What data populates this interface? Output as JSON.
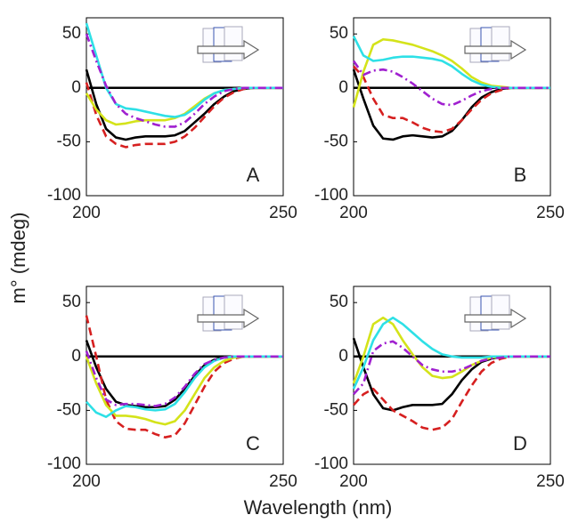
{
  "ylabel": "m° (mdeg)",
  "xlabel": "Wavelength (nm)",
  "chart_data": [
    {
      "type": "line",
      "label": "A",
      "x": [
        200,
        202.5,
        205,
        207.5,
        210,
        212.5,
        215,
        217.5,
        220,
        222.5,
        225,
        227.5,
        230,
        232.5,
        235,
        237.5,
        240,
        242.5,
        245,
        247.5,
        250
      ],
      "xlim": [
        200,
        250
      ],
      "xticks": [
        200,
        250
      ],
      "ylim": [
        -100,
        65
      ],
      "yticks": [
        -100,
        -50,
        0,
        50
      ],
      "hlines": [
        0
      ],
      "series": [
        {
          "color": "#000000",
          "dash": "solid",
          "values": [
            17,
            -15,
            -38,
            -46,
            -48,
            -46,
            -45,
            -45,
            -45,
            -44,
            -40,
            -32,
            -24,
            -15,
            -8,
            -3,
            -1,
            0,
            0,
            0,
            0
          ]
        },
        {
          "color": "#d62020",
          "dash": "dashed",
          "values": [
            5,
            -25,
            -45,
            -52,
            -55,
            -53,
            -52,
            -52,
            -52,
            -50,
            -45,
            -37,
            -27,
            -17,
            -9,
            -4,
            -1,
            0,
            0,
            0,
            0
          ]
        },
        {
          "color": "#d4e31a",
          "dash": "solid",
          "values": [
            -5,
            -20,
            -30,
            -34,
            -33,
            -31,
            -30,
            -30,
            -30,
            -28,
            -24,
            -17,
            -10,
            -5,
            -2,
            -1,
            0,
            0,
            0,
            0,
            0
          ]
        },
        {
          "color": "#2ee0e6",
          "dash": "solid",
          "values": [
            60,
            30,
            0,
            -15,
            -19,
            -20,
            -22,
            -24,
            -26,
            -27,
            -25,
            -19,
            -11,
            -5,
            -2,
            -1,
            0,
            0,
            0,
            0,
            0
          ]
        },
        {
          "color": "#a020d0",
          "dash": "dashdot",
          "values": [
            50,
            25,
            2,
            -15,
            -24,
            -28,
            -31,
            -34,
            -36,
            -36,
            -32,
            -24,
            -15,
            -8,
            -3,
            -1,
            0,
            0,
            0,
            0,
            0
          ]
        }
      ]
    },
    {
      "type": "line",
      "label": "B",
      "x": [
        200,
        202.5,
        205,
        207.5,
        210,
        212.5,
        215,
        217.5,
        220,
        222.5,
        225,
        227.5,
        230,
        232.5,
        235,
        237.5,
        240,
        242.5,
        245,
        247.5,
        250
      ],
      "xlim": [
        200,
        250
      ],
      "xticks": [
        200,
        250
      ],
      "ylim": [
        -100,
        65
      ],
      "yticks": [
        -100,
        -50,
        0,
        50
      ],
      "hlines": [
        0
      ],
      "series": [
        {
          "color": "#000000",
          "dash": "solid",
          "values": [
            17,
            -10,
            -35,
            -47,
            -48,
            -45,
            -44,
            -45,
            -46,
            -45,
            -40,
            -30,
            -18,
            -9,
            -4,
            -1,
            0,
            0,
            0,
            0,
            0
          ]
        },
        {
          "color": "#d62020",
          "dash": "dashed",
          "values": [
            20,
            10,
            -10,
            -25,
            -28,
            -28,
            -32,
            -37,
            -40,
            -41,
            -38,
            -30,
            -20,
            -11,
            -5,
            -2,
            0,
            0,
            0,
            0,
            0
          ]
        },
        {
          "color": "#d4e31a",
          "dash": "solid",
          "values": [
            -18,
            15,
            40,
            45,
            44,
            42,
            40,
            37,
            34,
            30,
            25,
            18,
            10,
            5,
            2,
            1,
            0,
            0,
            0,
            0,
            0
          ]
        },
        {
          "color": "#2ee0e6",
          "dash": "solid",
          "values": [
            48,
            30,
            25,
            26,
            28,
            29,
            29,
            28,
            27,
            25,
            20,
            13,
            7,
            3,
            1,
            0,
            0,
            0,
            0,
            0,
            0
          ]
        },
        {
          "color": "#a020d0",
          "dash": "dashdot",
          "values": [
            25,
            12,
            16,
            17,
            15,
            10,
            4,
            -3,
            -10,
            -15,
            -16,
            -12,
            -7,
            -3,
            -1,
            0,
            0,
            0,
            0,
            0,
            0
          ]
        }
      ]
    },
    {
      "type": "line",
      "label": "C",
      "x": [
        200,
        202.5,
        205,
        207.5,
        210,
        212.5,
        215,
        217.5,
        220,
        222.5,
        225,
        227.5,
        230,
        232.5,
        235,
        237.5,
        240,
        242.5,
        245,
        247.5,
        250
      ],
      "xlim": [
        200,
        250
      ],
      "xticks": [
        200,
        250
      ],
      "ylim": [
        -100,
        65
      ],
      "yticks": [
        -100,
        -50,
        0,
        50
      ],
      "hlines": [
        0
      ],
      "series": [
        {
          "color": "#000000",
          "dash": "solid",
          "values": [
            15,
            -10,
            -30,
            -42,
            -45,
            -46,
            -47,
            -47,
            -46,
            -40,
            -30,
            -18,
            -8,
            -3,
            -1,
            0,
            0,
            0,
            0,
            0,
            0
          ]
        },
        {
          "color": "#d62020",
          "dash": "dashed",
          "values": [
            38,
            0,
            -40,
            -60,
            -67,
            -68,
            -68,
            -72,
            -75,
            -73,
            -62,
            -45,
            -28,
            -14,
            -6,
            -2,
            0,
            0,
            0,
            0,
            0
          ]
        },
        {
          "color": "#d4e31a",
          "dash": "solid",
          "values": [
            0,
            -25,
            -45,
            -55,
            -55,
            -56,
            -58,
            -61,
            -63,
            -60,
            -50,
            -35,
            -20,
            -10,
            -4,
            -1,
            0,
            0,
            0,
            0,
            0
          ]
        },
        {
          "color": "#2ee0e6",
          "dash": "solid",
          "values": [
            -42,
            -52,
            -56,
            -50,
            -46,
            -47,
            -49,
            -50,
            -49,
            -44,
            -33,
            -20,
            -10,
            -4,
            -1,
            0,
            0,
            0,
            0,
            0,
            0
          ]
        },
        {
          "color": "#a020d0",
          "dash": "dashdot",
          "values": [
            5,
            -20,
            -40,
            -45,
            -44,
            -44,
            -45,
            -46,
            -44,
            -38,
            -28,
            -16,
            -7,
            -3,
            -1,
            0,
            0,
            0,
            0,
            0,
            0
          ]
        }
      ]
    },
    {
      "type": "line",
      "label": "D",
      "x": [
        200,
        202.5,
        205,
        207.5,
        210,
        212.5,
        215,
        217.5,
        220,
        222.5,
        225,
        227.5,
        230,
        232.5,
        235,
        237.5,
        240,
        242.5,
        245,
        247.5,
        250
      ],
      "xlim": [
        200,
        250
      ],
      "xticks": [
        200,
        250
      ],
      "ylim": [
        -100,
        65
      ],
      "yticks": [
        -100,
        -50,
        0,
        50
      ],
      "hlines": [
        0
      ],
      "series": [
        {
          "color": "#000000",
          "dash": "solid",
          "values": [
            17,
            -10,
            -35,
            -48,
            -50,
            -47,
            -45,
            -45,
            -45,
            -44,
            -35,
            -22,
            -12,
            -5,
            -2,
            0,
            0,
            0,
            0,
            0,
            0
          ]
        },
        {
          "color": "#d62020",
          "dash": "dashed",
          "values": [
            -45,
            -35,
            -30,
            -40,
            -50,
            -55,
            -60,
            -66,
            -68,
            -66,
            -58,
            -42,
            -27,
            -14,
            -6,
            -2,
            0,
            0,
            0,
            0,
            0
          ]
        },
        {
          "color": "#d4e31a",
          "dash": "solid",
          "values": [
            -25,
            0,
            30,
            36,
            30,
            15,
            2,
            -10,
            -18,
            -20,
            -19,
            -14,
            -8,
            -4,
            -1,
            0,
            0,
            0,
            0,
            0,
            0
          ]
        },
        {
          "color": "#2ee0e6",
          "dash": "solid",
          "values": [
            -30,
            -10,
            15,
            30,
            36,
            30,
            22,
            14,
            7,
            2,
            0,
            -1,
            -1,
            -1,
            0,
            0,
            0,
            0,
            0,
            0,
            0
          ]
        },
        {
          "color": "#a020d0",
          "dash": "dashdot",
          "values": [
            -35,
            -25,
            5,
            12,
            14,
            8,
            0,
            -8,
            -12,
            -14,
            -14,
            -12,
            -8,
            -4,
            -2,
            -1,
            0,
            0,
            0,
            0,
            0
          ]
        }
      ]
    }
  ]
}
